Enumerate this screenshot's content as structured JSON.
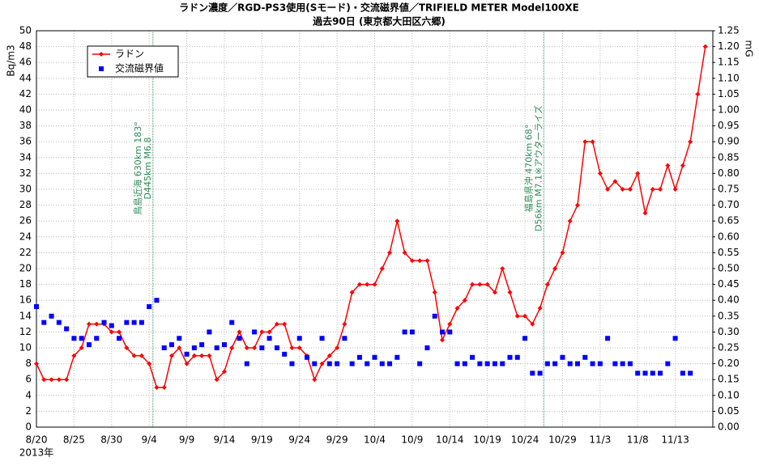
{
  "chart_data": {
    "type": "line",
    "title": "ラドン濃度／RGD-PS3使用(Sモード)・交流磁界値／TRIFIELD METER Model100XE",
    "subtitle": "過去90日 (東京都大田区六郷)",
    "y_label": "Bq/m3",
    "y2_label": "mG",
    "year_label": "2013年",
    "xlim": [
      0,
      90
    ],
    "xticks": [
      {
        "value": 0,
        "label": "8/20"
      },
      {
        "value": 5,
        "label": "8/25"
      },
      {
        "value": 10,
        "label": "8/30"
      },
      {
        "value": 15,
        "label": "9/4"
      },
      {
        "value": 20,
        "label": "9/9"
      },
      {
        "value": 25,
        "label": "9/14"
      },
      {
        "value": 30,
        "label": "9/19"
      },
      {
        "value": 35,
        "label": "9/24"
      },
      {
        "value": 40,
        "label": "9/29"
      },
      {
        "value": 45,
        "label": "10/4"
      },
      {
        "value": 50,
        "label": "10/9"
      },
      {
        "value": 55,
        "label": "10/14"
      },
      {
        "value": 60,
        "label": "10/19"
      },
      {
        "value": 65,
        "label": "10/24"
      },
      {
        "value": 70,
        "label": "10/29"
      },
      {
        "value": 75,
        "label": "11/3"
      },
      {
        "value": 80,
        "label": "11/8"
      },
      {
        "value": 85,
        "label": "11/13"
      }
    ],
    "ylim": [
      0,
      50
    ],
    "yticks": [
      0,
      2,
      4,
      6,
      8,
      10,
      12,
      14,
      16,
      18,
      20,
      22,
      24,
      26,
      28,
      30,
      32,
      34,
      36,
      38,
      40,
      42,
      44,
      46,
      48,
      50
    ],
    "y2lim": [
      0,
      1.25
    ],
    "y2ticks": [
      {
        "value": 0,
        "label": "0.00"
      },
      {
        "value": 0.05,
        "label": "0.05"
      },
      {
        "value": 0.1,
        "label": "0.10"
      },
      {
        "value": 0.15,
        "label": "0.15"
      },
      {
        "value": 0.2,
        "label": "0.20"
      },
      {
        "value": 0.25,
        "label": "0.25"
      },
      {
        "value": 0.3,
        "label": "0.30"
      },
      {
        "value": 0.35,
        "label": "0.35"
      },
      {
        "value": 0.4,
        "label": "0.40"
      },
      {
        "value": 0.45,
        "label": "0.45"
      },
      {
        "value": 0.5,
        "label": "0.50"
      },
      {
        "value": 0.55,
        "label": "0.55"
      },
      {
        "value": 0.6,
        "label": "0.60"
      },
      {
        "value": 0.65,
        "label": "0.65"
      },
      {
        "value": 0.7,
        "label": "0.70"
      },
      {
        "value": 0.75,
        "label": "0.75"
      },
      {
        "value": 0.8,
        "label": "0.80"
      },
      {
        "value": 0.85,
        "label": "0.85"
      },
      {
        "value": 0.9,
        "label": "0.90"
      },
      {
        "value": 0.95,
        "label": "0.95"
      },
      {
        "value": 1,
        "label": "1.00"
      },
      {
        "value": 1.05,
        "label": "1.05"
      },
      {
        "value": 1.1,
        "label": "1.10"
      },
      {
        "value": 1.15,
        "label": "1.15"
      },
      {
        "value": 1.2,
        "label": "1.20"
      },
      {
        "value": 1.25,
        "label": "1.25"
      }
    ],
    "grid": true,
    "legend": "upper left",
    "x": [
      0,
      1,
      2,
      3,
      4,
      5,
      6,
      7,
      8,
      9,
      10,
      11,
      12,
      13,
      14,
      15,
      16,
      17,
      18,
      19,
      20,
      21,
      22,
      23,
      24,
      25,
      26,
      27,
      28,
      29,
      30,
      31,
      32,
      33,
      34,
      35,
      36,
      37,
      38,
      39,
      40,
      41,
      42,
      43,
      44,
      45,
      46,
      47,
      48,
      49,
      50,
      51,
      52,
      53,
      54,
      55,
      56,
      57,
      58,
      59,
      60,
      61,
      62,
      63,
      64,
      65,
      66,
      67,
      68,
      69,
      70,
      71,
      72,
      73,
      74,
      75,
      76,
      77,
      78,
      79,
      80,
      81,
      82,
      83,
      84,
      85,
      86,
      87,
      88,
      89
    ],
    "series": [
      {
        "name": "ラドン",
        "color": "#ff0000",
        "style": "line",
        "values": [
          8,
          6,
          6,
          6,
          6,
          9,
          10,
          13,
          13,
          13,
          12,
          12,
          10,
          9,
          9,
          8,
          5,
          5,
          9,
          10,
          8,
          9,
          9,
          9,
          6,
          7,
          10,
          12,
          10,
          10,
          12,
          12,
          13,
          13,
          10,
          10,
          9,
          6,
          8,
          9,
          10,
          13,
          17,
          18,
          18,
          18,
          20,
          22,
          26,
          22,
          21,
          21,
          21,
          17,
          11,
          13,
          15,
          16,
          18,
          18,
          18,
          17,
          20,
          17,
          14,
          14,
          13,
          15,
          18,
          20,
          22,
          26,
          28,
          36,
          36,
          32,
          30,
          31,
          30,
          30,
          32,
          27,
          30,
          30,
          33,
          30,
          33,
          36,
          42,
          48
        ]
      },
      {
        "name": "交流磁界値",
        "color": "#0000ff",
        "style": "points",
        "axis": "y2",
        "values": [
          0.38,
          0.33,
          0.35,
          0.33,
          0.31,
          0.28,
          0.28,
          0.26,
          0.28,
          0.33,
          0.32,
          0.28,
          0.33,
          0.33,
          0.33,
          0.38,
          0.4,
          0.25,
          0.26,
          0.28,
          0.23,
          0.25,
          0.26,
          0.3,
          0.25,
          0.26,
          0.33,
          0.28,
          0.2,
          0.3,
          0.25,
          0.28,
          0.25,
          0.23,
          0.2,
          0.28,
          0.22,
          0.2,
          0.28,
          0.2,
          0.2,
          0.28,
          0.2,
          0.22,
          0.2,
          0.22,
          0.2,
          0.2,
          0.22,
          0.3,
          0.3,
          0.2,
          0.25,
          0.35,
          0.3,
          0.3,
          0.2,
          0.2,
          0.22,
          0.2,
          0.2,
          0.2,
          0.2,
          0.22,
          0.22,
          0.28,
          0.17,
          0.17,
          0.2,
          0.2,
          0.22,
          0.2,
          0.2,
          0.22,
          0.2,
          0.2,
          0.28,
          0.2,
          0.2,
          0.2,
          0.17,
          0.17,
          0.17,
          0.17,
          0.2,
          0.28,
          0.17,
          0.17,
          null,
          null
        ]
      }
    ],
    "annotations": [
      {
        "x": 15.5,
        "lines": [
          "鳥島近海 630km 183°",
          "D445km M6.8"
        ]
      },
      {
        "x": 67.5,
        "lines": [
          "福島県沖 470km 68°",
          "D56km M7.1※アウターライズ"
        ]
      }
    ]
  }
}
